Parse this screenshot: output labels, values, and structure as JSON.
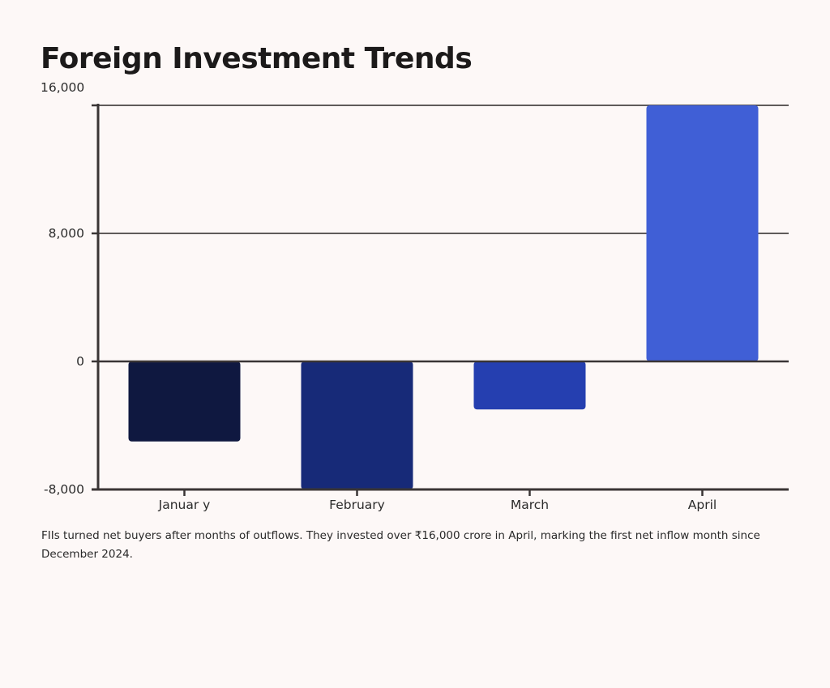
{
  "title": "Foreign Investment Trends",
  "caption": "FIIs turned net buyers after months of outflows. They invested over ₹16,000 crore in April, marking the first net inflow month since December 2024.",
  "colors": {
    "background": "#fdf8f7",
    "axis": "#3a3535",
    "gridline": "#2b2727"
  },
  "chart_data": {
    "type": "bar",
    "title": "Foreign Investment Trends",
    "xlabel": "",
    "ylabel": "",
    "categories": [
      "Januar y",
      "February",
      "March",
      "April"
    ],
    "values": [
      -5000,
      -8000,
      -3000,
      16000
    ],
    "bar_colors": [
      "#0f1840",
      "#172a78",
      "#253fb0",
      "#405fd6"
    ],
    "ylim": [
      -8000,
      16000
    ],
    "yticks": [
      -8000,
      0,
      8000,
      16000
    ],
    "ytick_labels": [
      "-8,000",
      "0",
      "8,000",
      "16,000"
    ],
    "grid": true
  }
}
